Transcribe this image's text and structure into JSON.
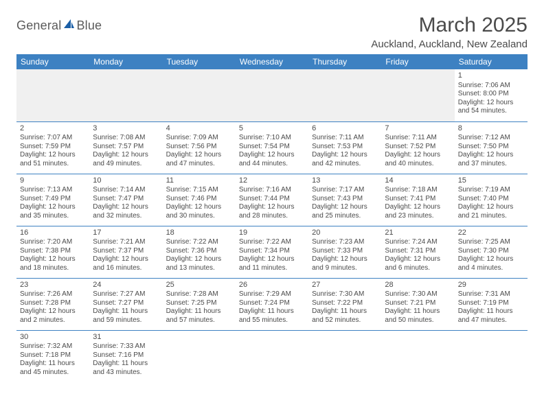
{
  "logo": {
    "text1": "General",
    "text2": "Blue"
  },
  "title": "March 2025",
  "location": "Auckland, Auckland, New Zealand",
  "colors": {
    "header_bg": "#3d81c2",
    "header_text": "#ffffff",
    "text": "#4a4a4a",
    "border": "#3d81c2",
    "empty_bg": "#f0f0f0",
    "page_bg": "#ffffff",
    "logo_icon": "#1c5fa6"
  },
  "typography": {
    "title_fontsize": 30,
    "location_fontsize": 15,
    "weekday_fontsize": 12,
    "daynum_fontsize": 11,
    "info_fontsize": 10
  },
  "weekdays": [
    "Sunday",
    "Monday",
    "Tuesday",
    "Wednesday",
    "Thursday",
    "Friday",
    "Saturday"
  ],
  "weeks": [
    [
      null,
      null,
      null,
      null,
      null,
      null,
      {
        "n": "1",
        "sr": "Sunrise: 7:06 AM",
        "ss": "Sunset: 8:00 PM",
        "dl": "Daylight: 12 hours and 54 minutes."
      }
    ],
    [
      {
        "n": "2",
        "sr": "Sunrise: 7:07 AM",
        "ss": "Sunset: 7:59 PM",
        "dl": "Daylight: 12 hours and 51 minutes."
      },
      {
        "n": "3",
        "sr": "Sunrise: 7:08 AM",
        "ss": "Sunset: 7:57 PM",
        "dl": "Daylight: 12 hours and 49 minutes."
      },
      {
        "n": "4",
        "sr": "Sunrise: 7:09 AM",
        "ss": "Sunset: 7:56 PM",
        "dl": "Daylight: 12 hours and 47 minutes."
      },
      {
        "n": "5",
        "sr": "Sunrise: 7:10 AM",
        "ss": "Sunset: 7:54 PM",
        "dl": "Daylight: 12 hours and 44 minutes."
      },
      {
        "n": "6",
        "sr": "Sunrise: 7:11 AM",
        "ss": "Sunset: 7:53 PM",
        "dl": "Daylight: 12 hours and 42 minutes."
      },
      {
        "n": "7",
        "sr": "Sunrise: 7:11 AM",
        "ss": "Sunset: 7:52 PM",
        "dl": "Daylight: 12 hours and 40 minutes."
      },
      {
        "n": "8",
        "sr": "Sunrise: 7:12 AM",
        "ss": "Sunset: 7:50 PM",
        "dl": "Daylight: 12 hours and 37 minutes."
      }
    ],
    [
      {
        "n": "9",
        "sr": "Sunrise: 7:13 AM",
        "ss": "Sunset: 7:49 PM",
        "dl": "Daylight: 12 hours and 35 minutes."
      },
      {
        "n": "10",
        "sr": "Sunrise: 7:14 AM",
        "ss": "Sunset: 7:47 PM",
        "dl": "Daylight: 12 hours and 32 minutes."
      },
      {
        "n": "11",
        "sr": "Sunrise: 7:15 AM",
        "ss": "Sunset: 7:46 PM",
        "dl": "Daylight: 12 hours and 30 minutes."
      },
      {
        "n": "12",
        "sr": "Sunrise: 7:16 AM",
        "ss": "Sunset: 7:44 PM",
        "dl": "Daylight: 12 hours and 28 minutes."
      },
      {
        "n": "13",
        "sr": "Sunrise: 7:17 AM",
        "ss": "Sunset: 7:43 PM",
        "dl": "Daylight: 12 hours and 25 minutes."
      },
      {
        "n": "14",
        "sr": "Sunrise: 7:18 AM",
        "ss": "Sunset: 7:41 PM",
        "dl": "Daylight: 12 hours and 23 minutes."
      },
      {
        "n": "15",
        "sr": "Sunrise: 7:19 AM",
        "ss": "Sunset: 7:40 PM",
        "dl": "Daylight: 12 hours and 21 minutes."
      }
    ],
    [
      {
        "n": "16",
        "sr": "Sunrise: 7:20 AM",
        "ss": "Sunset: 7:38 PM",
        "dl": "Daylight: 12 hours and 18 minutes."
      },
      {
        "n": "17",
        "sr": "Sunrise: 7:21 AM",
        "ss": "Sunset: 7:37 PM",
        "dl": "Daylight: 12 hours and 16 minutes."
      },
      {
        "n": "18",
        "sr": "Sunrise: 7:22 AM",
        "ss": "Sunset: 7:36 PM",
        "dl": "Daylight: 12 hours and 13 minutes."
      },
      {
        "n": "19",
        "sr": "Sunrise: 7:22 AM",
        "ss": "Sunset: 7:34 PM",
        "dl": "Daylight: 12 hours and 11 minutes."
      },
      {
        "n": "20",
        "sr": "Sunrise: 7:23 AM",
        "ss": "Sunset: 7:33 PM",
        "dl": "Daylight: 12 hours and 9 minutes."
      },
      {
        "n": "21",
        "sr": "Sunrise: 7:24 AM",
        "ss": "Sunset: 7:31 PM",
        "dl": "Daylight: 12 hours and 6 minutes."
      },
      {
        "n": "22",
        "sr": "Sunrise: 7:25 AM",
        "ss": "Sunset: 7:30 PM",
        "dl": "Daylight: 12 hours and 4 minutes."
      }
    ],
    [
      {
        "n": "23",
        "sr": "Sunrise: 7:26 AM",
        "ss": "Sunset: 7:28 PM",
        "dl": "Daylight: 12 hours and 2 minutes."
      },
      {
        "n": "24",
        "sr": "Sunrise: 7:27 AM",
        "ss": "Sunset: 7:27 PM",
        "dl": "Daylight: 11 hours and 59 minutes."
      },
      {
        "n": "25",
        "sr": "Sunrise: 7:28 AM",
        "ss": "Sunset: 7:25 PM",
        "dl": "Daylight: 11 hours and 57 minutes."
      },
      {
        "n": "26",
        "sr": "Sunrise: 7:29 AM",
        "ss": "Sunset: 7:24 PM",
        "dl": "Daylight: 11 hours and 55 minutes."
      },
      {
        "n": "27",
        "sr": "Sunrise: 7:30 AM",
        "ss": "Sunset: 7:22 PM",
        "dl": "Daylight: 11 hours and 52 minutes."
      },
      {
        "n": "28",
        "sr": "Sunrise: 7:30 AM",
        "ss": "Sunset: 7:21 PM",
        "dl": "Daylight: 11 hours and 50 minutes."
      },
      {
        "n": "29",
        "sr": "Sunrise: 7:31 AM",
        "ss": "Sunset: 7:19 PM",
        "dl": "Daylight: 11 hours and 47 minutes."
      }
    ],
    [
      {
        "n": "30",
        "sr": "Sunrise: 7:32 AM",
        "ss": "Sunset: 7:18 PM",
        "dl": "Daylight: 11 hours and 45 minutes."
      },
      {
        "n": "31",
        "sr": "Sunrise: 7:33 AM",
        "ss": "Sunset: 7:16 PM",
        "dl": "Daylight: 11 hours and 43 minutes."
      },
      null,
      null,
      null,
      null,
      null
    ]
  ]
}
